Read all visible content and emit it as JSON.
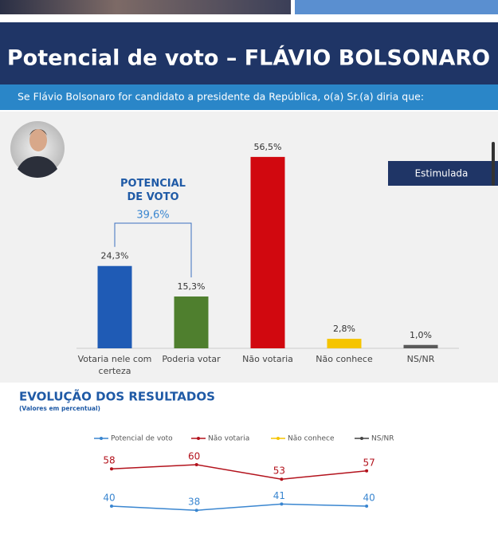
{
  "chart_data": [
    {
      "type": "bar",
      "title": "Potencial de voto – FLÁVIO BOLSONARO",
      "subtitle": "Se Flávio Bolsonaro for candidato a presidente da República, o(a) Sr.(a) diria que:",
      "label": "Estimulada",
      "categories": [
        "Votaria nele com certeza",
        "Poderia votar",
        "Não votaria",
        "Não conhece",
        "NS/NR"
      ],
      "values": [
        24.3,
        15.3,
        56.5,
        2.8,
        1.0
      ],
      "value_labels": [
        "24,3%",
        "15,3%",
        "56,5%",
        "2,8%",
        "1,0%"
      ],
      "colors": [
        "#1f5bb5",
        "#4f7f2e",
        "#d1080f",
        "#f5c400",
        "#5a5a5a"
      ],
      "ylim": [
        0,
        60
      ],
      "annotation": {
        "title": "POTENCIAL DE VOTO",
        "value": 39.6,
        "label": "39,6%"
      }
    },
    {
      "type": "line",
      "title": "EVOLUÇÃO DOS RESULTADOS",
      "subtitle": "(Valores em percentual)",
      "categories": [
        null,
        null,
        null,
        null
      ],
      "ylim": [
        30,
        70
      ],
      "series": [
        {
          "name": "Potencial de voto",
          "color": "#3a86d0",
          "values": [
            40,
            38,
            41,
            40
          ]
        },
        {
          "name": "Não votaria",
          "color": "#b3121c",
          "values": [
            58,
            60,
            53,
            57
          ]
        },
        {
          "name": "Não conhece",
          "color": "#f5c400",
          "values": [
            null,
            null,
            null,
            null
          ]
        },
        {
          "name": "NS/NR",
          "color": "#444444",
          "values": [
            null,
            null,
            null,
            null
          ]
        }
      ]
    }
  ]
}
